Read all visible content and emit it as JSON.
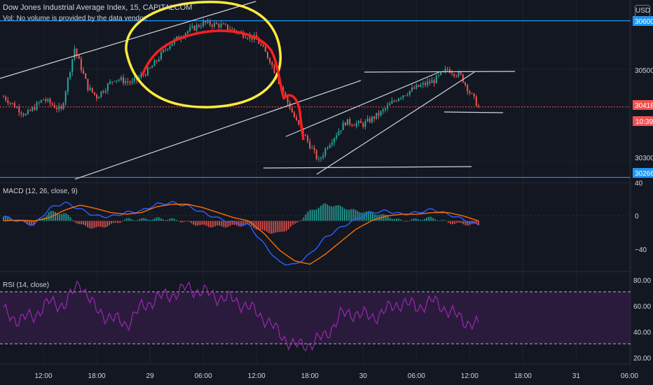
{
  "header": {
    "title": "Dow Jones Industrial Average Index, 15, CAPITALCOM",
    "volume_note": "Vol: No volume is provided by the data vendor.",
    "currency": "USD"
  },
  "panes": {
    "macd_label": "MACD (12, 26, close, 9)",
    "rsi_label": "RSI (14, close)"
  },
  "colors": {
    "background": "#131722",
    "up": "#26a69a",
    "down": "#ef5350",
    "macd_line": "#2962ff",
    "signal_line": "#ff6d00",
    "rsi_line": "#9c27b0",
    "rsi_band": "#2a1b3d",
    "horizontal_level": "#2196f3",
    "trendline": "#d1d4dc",
    "highlight_circle": "#ffeb3b",
    "highlight_curve": "#ff1f1f"
  },
  "price_axis": {
    "ticks": [
      "30600",
      "30500",
      "30300"
    ],
    "last_price": "30418",
    "countdown": "10:39",
    "level_label": "30266",
    "level_labels": [
      "30600",
      "30266"
    ]
  },
  "macd_axis": {
    "ticks": [
      "40",
      "0",
      "−40"
    ]
  },
  "rsi_axis": {
    "ticks": [
      "80.00",
      "60.00",
      "40.00",
      "20.00"
    ]
  },
  "time_axis": {
    "labels": [
      "12:00",
      "18:00",
      "29",
      "06:00",
      "12:00",
      "18:00",
      "30",
      "06:00",
      "12:00",
      "18:00",
      "31",
      "06:00"
    ]
  },
  "chart_data": {
    "type": "candlestick",
    "title": "Dow Jones Industrial Average Index, 15, CAPITALCOM",
    "x": [
      "28 12:00",
      "28 18:00",
      "29",
      "29 06:00",
      "29 12:00",
      "29 18:00",
      "30",
      "30 06:00",
      "30 12:00",
      "30 18:00",
      "31",
      "31 06:00"
    ],
    "ylim": [
      30255,
      30650
    ],
    "price_series": [
      {
        "t": "28 07:30",
        "close": 30440
      },
      {
        "t": "28 10:00",
        "close": 30400
      },
      {
        "t": "28 12:00",
        "close": 30435
      },
      {
        "t": "28 14:00",
        "close": 30410
      },
      {
        "t": "28 15:30",
        "close": 30545
      },
      {
        "t": "28 17:00",
        "close": 30460
      },
      {
        "t": "28 18:00",
        "close": 30440
      },
      {
        "t": "28 20:00",
        "close": 30480
      },
      {
        "t": "28 22:00",
        "close": 30470
      },
      {
        "t": "29 00:00",
        "close": 30500
      },
      {
        "t": "29 02:00",
        "close": 30550
      },
      {
        "t": "29 04:00",
        "close": 30580
      },
      {
        "t": "29 06:00",
        "close": 30600
      },
      {
        "t": "29 08:00",
        "close": 30595
      },
      {
        "t": "29 10:00",
        "close": 30580
      },
      {
        "t": "29 12:00",
        "close": 30565
      },
      {
        "t": "29 13:30",
        "close": 30520
      },
      {
        "t": "29 15:00",
        "close": 30450
      },
      {
        "t": "29 16:30",
        "close": 30385
      },
      {
        "t": "29 18:00",
        "close": 30335
      },
      {
        "t": "29 19:00",
        "close": 30300
      },
      {
        "t": "29 20:00",
        "close": 30335
      },
      {
        "t": "29 22:00",
        "close": 30385
      },
      {
        "t": "30 00:00",
        "close": 30380
      },
      {
        "t": "30 02:00",
        "close": 30405
      },
      {
        "t": "30 04:00",
        "close": 30440
      },
      {
        "t": "30 06:00",
        "close": 30460
      },
      {
        "t": "30 08:00",
        "close": 30475
      },
      {
        "t": "30 09:30",
        "close": 30500
      },
      {
        "t": "30 11:00",
        "close": 30485
      },
      {
        "t": "30 12:00",
        "close": 30450
      },
      {
        "t": "30 13:00",
        "close": 30418
      }
    ],
    "horizontal_levels": [
      30605,
      30265
    ],
    "macd": {
      "ylim": [
        -60,
        45
      ],
      "macd": [
        5,
        0,
        -5,
        15,
        22,
        14,
        6,
        5,
        10,
        12,
        20,
        22,
        18,
        10,
        3,
        -2,
        -5,
        -28,
        -50,
        -53,
        -40,
        -20,
        -8,
        2,
        10,
        12,
        8,
        10,
        14,
        8,
        2,
        -5
      ],
      "signal": [
        0,
        1,
        0,
        4,
        13,
        19,
        15,
        10,
        8,
        10,
        17,
        20,
        20,
        16,
        10,
        4,
        0,
        -15,
        -35,
        -48,
        -52,
        -40,
        -25,
        -10,
        0,
        6,
        8,
        8,
        10,
        10,
        6,
        0
      ]
    },
    "rsi": {
      "ylim": [
        15,
        85
      ],
      "levels": [
        70,
        30
      ],
      "values": [
        55,
        48,
        52,
        62,
        60,
        78,
        56,
        50,
        45,
        58,
        65,
        68,
        73,
        70,
        66,
        64,
        58,
        50,
        38,
        28,
        30,
        36,
        52,
        54,
        50,
        56,
        62,
        58,
        63,
        56,
        48,
        44
      ]
    }
  }
}
